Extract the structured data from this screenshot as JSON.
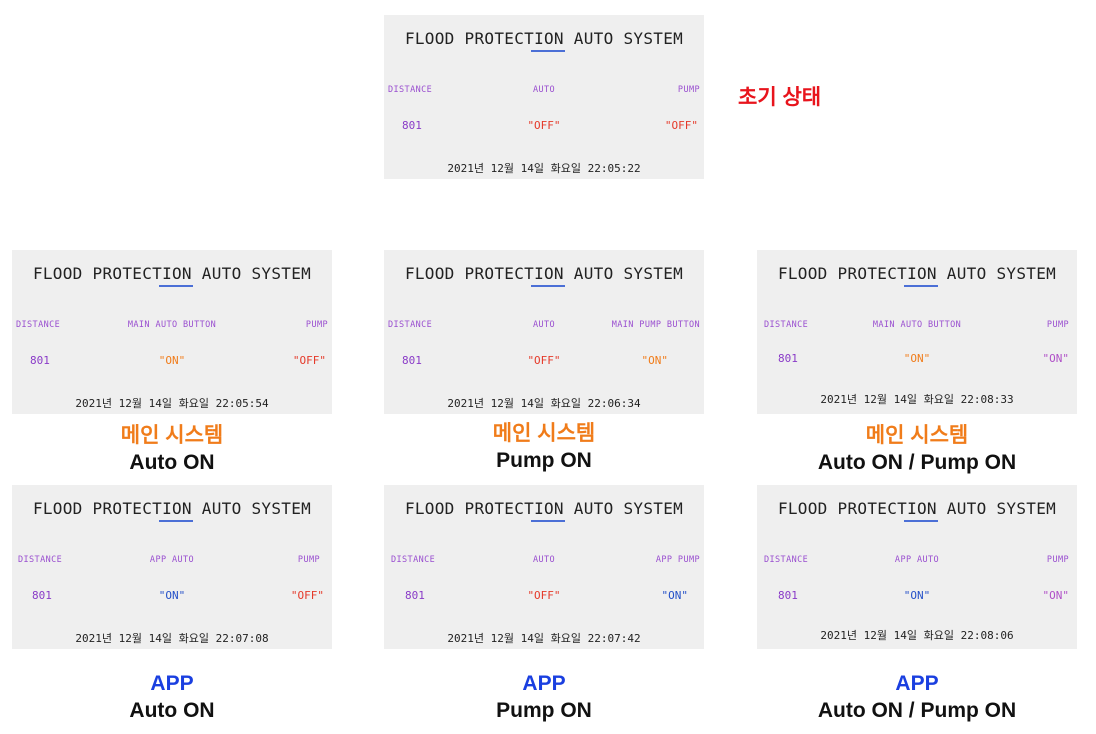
{
  "initial": {
    "title": "FLOOD PROTECTION AUTO SYSTEM",
    "labels": [
      "DISTANCE",
      "AUTO",
      "PUMP"
    ],
    "values": [
      "801",
      "\"OFF\"",
      "\"OFF\""
    ],
    "date": "2021년 12월 14일 화요일 22:05:22",
    "caption": "초기 상태"
  },
  "main": [
    {
      "title": "FLOOD PROTECTION AUTO SYSTEM",
      "labels": [
        "DISTANCE",
        "MAIN AUTO BUTTON",
        "PUMP"
      ],
      "values": [
        "801",
        "\"ON\"",
        "\"OFF\""
      ],
      "date": "2021년 12월 14일 화요일 22:05:54",
      "caption_top": "메인 시스템",
      "caption_bottom": "Auto ON"
    },
    {
      "title": "FLOOD PROTECTION AUTO SYSTEM",
      "labels": [
        "DISTANCE",
        "AUTO",
        "MAIN PUMP BUTTON"
      ],
      "values": [
        "801",
        "\"OFF\"",
        "\"ON\""
      ],
      "date": "2021년 12월 14일 화요일 22:06:34",
      "caption_top": "메인 시스템",
      "caption_bottom": "Pump ON"
    },
    {
      "title": "FLOOD PROTECTION AUTO SYSTEM",
      "labels": [
        "DISTANCE",
        "MAIN AUTO BUTTON",
        "PUMP"
      ],
      "values": [
        "801",
        "\"ON\"",
        "\"ON\""
      ],
      "date": "2021년 12월 14일 화요일 22:08:33",
      "caption_top": "메인 시스템",
      "caption_bottom": "Auto ON / Pump ON"
    }
  ],
  "app": [
    {
      "title": "FLOOD PROTECTION AUTO SYSTEM",
      "labels": [
        "DISTANCE",
        "APP AUTO",
        "PUMP"
      ],
      "values": [
        "801",
        "\"ON\"",
        "\"OFF\""
      ],
      "date": "2021년 12월 14일 화요일 22:07:08",
      "caption_top": "APP",
      "caption_bottom": "Auto ON"
    },
    {
      "title": "FLOOD PROTECTION AUTO SYSTEM",
      "labels": [
        "DISTANCE",
        "AUTO",
        "APP PUMP"
      ],
      "values": [
        "801",
        "\"OFF\"",
        "\"ON\""
      ],
      "date": "2021년 12월 14일 화요일 22:07:42",
      "caption_top": "APP",
      "caption_bottom": "Pump ON"
    },
    {
      "title": "FLOOD PROTECTION AUTO SYSTEM",
      "labels": [
        "DISTANCE",
        "APP AUTO",
        "PUMP"
      ],
      "values": [
        "801",
        "\"ON\"",
        "\"ON\""
      ],
      "date": "2021년 12월 14일 화요일 22:08:06",
      "caption_top": "APP",
      "caption_bottom": "Auto ON / Pump ON"
    }
  ],
  "colors": {
    "off": "#e53a2a",
    "on_main": "#f07c1a",
    "on_app": "#2450c8",
    "on_pump_purple": "#b050c8",
    "caption_red": "#e8141c",
    "caption_orange": "#f07c1a",
    "caption_blue": "#1a3fe0"
  }
}
